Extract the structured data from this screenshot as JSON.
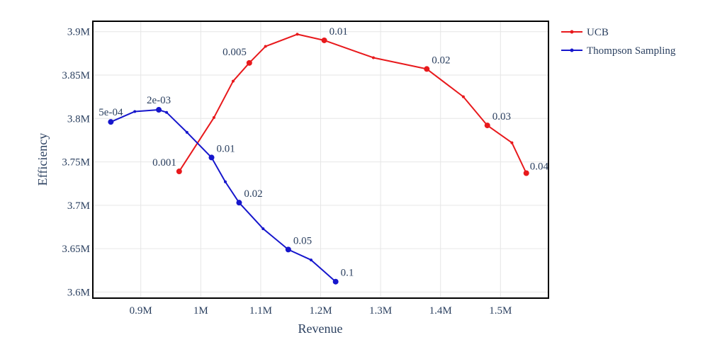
{
  "chart_data": {
    "type": "line",
    "xlabel": "Revenue",
    "ylabel": "Efficiency",
    "xlim": [
      820000,
      1580000
    ],
    "ylim": [
      3.593,
      3.912
    ],
    "grid": true,
    "legend_position": "top-right outside",
    "x_ticks": [
      {
        "value": 900000,
        "label": "0.9M"
      },
      {
        "value": 1000000,
        "label": "1M"
      },
      {
        "value": 1100000,
        "label": "1.1M"
      },
      {
        "value": 1200000,
        "label": "1.2M"
      },
      {
        "value": 1300000,
        "label": "1.3M"
      },
      {
        "value": 1400000,
        "label": "1.4M"
      },
      {
        "value": 1500000,
        "label": "1.5M"
      }
    ],
    "y_ticks": [
      {
        "value": 3.6,
        "label": "3.6M"
      },
      {
        "value": 3.65,
        "label": "3.65M"
      },
      {
        "value": 3.7,
        "label": "3.7M"
      },
      {
        "value": 3.75,
        "label": "3.75M"
      },
      {
        "value": 3.8,
        "label": "3.8M"
      },
      {
        "value": 3.85,
        "label": "3.85M"
      },
      {
        "value": 3.9,
        "label": "3.9M"
      }
    ],
    "series": [
      {
        "name": "UCB",
        "color": "#e8191c",
        "points": [
          {
            "x": 964000,
            "y": 3.739,
            "label": "0.001"
          },
          {
            "x": 1022000,
            "y": 3.801
          },
          {
            "x": 1054000,
            "y": 3.843
          },
          {
            "x": 1081000,
            "y": 3.864,
            "label": "0.005"
          },
          {
            "x": 1108000,
            "y": 3.883
          },
          {
            "x": 1161000,
            "y": 3.897
          },
          {
            "x": 1206000,
            "y": 3.89,
            "label": "0.01"
          },
          {
            "x": 1288000,
            "y": 3.87
          },
          {
            "x": 1377000,
            "y": 3.857,
            "label": "0.02"
          },
          {
            "x": 1438000,
            "y": 3.825
          },
          {
            "x": 1478000,
            "y": 3.792,
            "label": "0.03"
          },
          {
            "x": 1519000,
            "y": 3.772
          },
          {
            "x": 1543000,
            "y": 3.737,
            "label": "0.04"
          }
        ]
      },
      {
        "name": "Thompson Sampling",
        "color": "#1616cc",
        "points": [
          {
            "x": 850000,
            "y": 3.796,
            "label": "5e-04"
          },
          {
            "x": 890000,
            "y": 3.808
          },
          {
            "x": 930000,
            "y": 3.81,
            "label": "2e-03"
          },
          {
            "x": 943000,
            "y": 3.807
          },
          {
            "x": 977000,
            "y": 3.784
          },
          {
            "x": 1018000,
            "y": 3.755,
            "label": "0.01"
          },
          {
            "x": 1041000,
            "y": 3.727
          },
          {
            "x": 1064000,
            "y": 3.703,
            "label": "0.02"
          },
          {
            "x": 1104000,
            "y": 3.673
          },
          {
            "x": 1146000,
            "y": 3.649,
            "label": "0.05"
          },
          {
            "x": 1184000,
            "y": 3.637
          },
          {
            "x": 1225000,
            "y": 3.612,
            "label": "0.1"
          }
        ]
      }
    ]
  }
}
